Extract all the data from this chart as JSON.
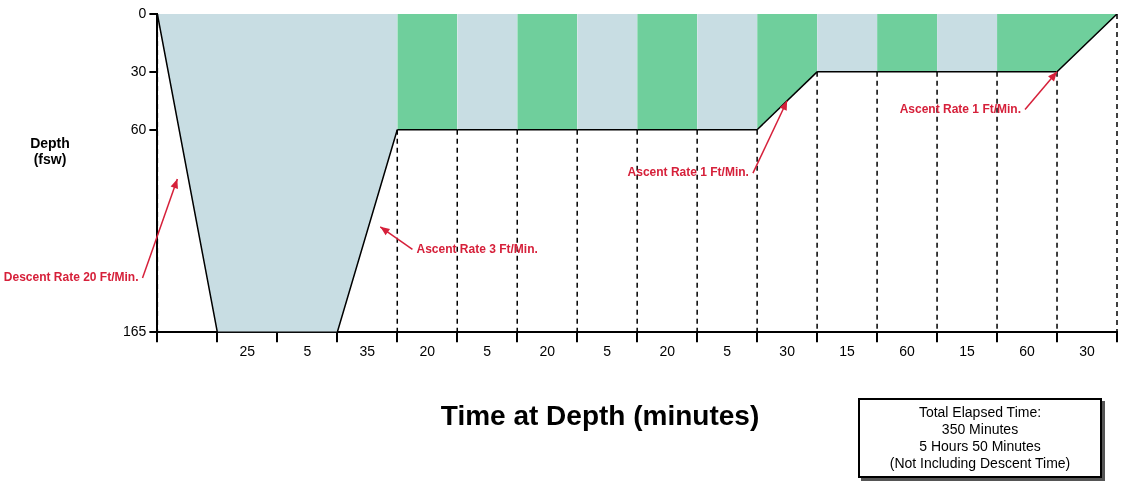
{
  "chart_data": {
    "type": "area",
    "xlabel": "Time at Depth (minutes)",
    "ylabel": "Depth (fsw)",
    "categories": [
      null,
      null,
      null,
      "25",
      null,
      "5",
      null,
      "35",
      null,
      "20",
      null,
      "5",
      null,
      "20",
      null,
      "5",
      null,
      "20",
      null,
      "5",
      null,
      "30",
      null,
      "15",
      null,
      "60",
      null,
      "15",
      null,
      "60",
      null,
      "30",
      null
    ],
    "ylim": [
      165,
      0
    ],
    "yticks": [
      0,
      30,
      60,
      165
    ],
    "series": [
      {
        "color": "#c8dde3",
        "values": [
          0,
          null,
          165,
          null,
          165,
          null,
          165,
          null,
          60,
          null,
          null,
          null,
          null,
          null,
          null,
          null,
          null,
          null,
          null,
          null,
          null,
          null,
          null,
          null,
          null,
          null,
          null,
          null,
          null,
          null,
          null,
          null,
          null
        ]
      },
      {
        "color": "#6fcf9c",
        "values": [
          null,
          null,
          null,
          null,
          null,
          null,
          null,
          null,
          60,
          null,
          60,
          null,
          null,
          null,
          null,
          null,
          null,
          null,
          null,
          null,
          null,
          null,
          null,
          null,
          null,
          null,
          null,
          null,
          null,
          null,
          null,
          null,
          null
        ]
      },
      {
        "color": "#c8dde3",
        "values": [
          null,
          null,
          null,
          null,
          null,
          null,
          null,
          null,
          null,
          null,
          60,
          null,
          60,
          null,
          null,
          null,
          null,
          null,
          null,
          null,
          null,
          null,
          null,
          null,
          null,
          null,
          null,
          null,
          null,
          null,
          null,
          null,
          null
        ]
      },
      {
        "color": "#6fcf9c",
        "values": [
          null,
          null,
          null,
          null,
          null,
          null,
          null,
          null,
          null,
          null,
          null,
          null,
          60,
          null,
          60,
          null,
          null,
          null,
          null,
          null,
          null,
          null,
          null,
          null,
          null,
          null,
          null,
          null,
          null,
          null,
          null,
          null,
          null
        ]
      },
      {
        "color": "#c8dde3",
        "values": [
          null,
          null,
          null,
          null,
          null,
          null,
          null,
          null,
          null,
          null,
          null,
          null,
          null,
          null,
          60,
          null,
          60,
          null,
          null,
          null,
          null,
          null,
          null,
          null,
          null,
          null,
          null,
          null,
          null,
          null,
          null,
          null,
          null
        ]
      },
      {
        "color": "#6fcf9c",
        "values": [
          null,
          null,
          null,
          null,
          null,
          null,
          null,
          null,
          null,
          null,
          null,
          null,
          null,
          null,
          null,
          null,
          60,
          null,
          60,
          null,
          null,
          null,
          null,
          null,
          null,
          null,
          null,
          null,
          null,
          null,
          null,
          null,
          null
        ]
      },
      {
        "color": "#c8dde3",
        "values": [
          null,
          null,
          null,
          null,
          null,
          null,
          null,
          null,
          null,
          null,
          null,
          null,
          null,
          null,
          null,
          null,
          null,
          null,
          60,
          null,
          60,
          null,
          null,
          null,
          null,
          null,
          null,
          null,
          null,
          null,
          null,
          null,
          null
        ]
      },
      {
        "color": "#6fcf9c",
        "values": [
          null,
          null,
          null,
          null,
          null,
          null,
          null,
          null,
          null,
          null,
          null,
          null,
          null,
          null,
          null,
          null,
          null,
          null,
          null,
          null,
          60,
          null,
          30,
          null,
          null,
          null,
          null,
          null,
          null,
          null,
          null,
          null,
          null
        ]
      },
      {
        "color": "#c8dde3",
        "values": [
          null,
          null,
          null,
          null,
          null,
          null,
          null,
          null,
          null,
          null,
          null,
          null,
          null,
          null,
          null,
          null,
          null,
          null,
          null,
          null,
          null,
          null,
          30,
          null,
          30,
          null,
          null,
          null,
          null,
          null,
          null,
          null,
          null
        ]
      },
      {
        "color": "#6fcf9c",
        "values": [
          null,
          null,
          null,
          null,
          null,
          null,
          null,
          null,
          null,
          null,
          null,
          null,
          null,
          null,
          null,
          null,
          null,
          null,
          null,
          null,
          null,
          null,
          null,
          null,
          30,
          null,
          30,
          null,
          null,
          null,
          null,
          null,
          null
        ]
      },
      {
        "color": "#c8dde3",
        "values": [
          null,
          null,
          null,
          null,
          null,
          null,
          null,
          null,
          null,
          null,
          null,
          null,
          null,
          null,
          null,
          null,
          null,
          null,
          null,
          null,
          null,
          null,
          null,
          null,
          null,
          null,
          30,
          null,
          30,
          null,
          null,
          null,
          null
        ]
      },
      {
        "color": "#6fcf9c",
        "values": [
          null,
          null,
          null,
          null,
          null,
          null,
          null,
          null,
          null,
          null,
          null,
          null,
          null,
          null,
          null,
          null,
          null,
          null,
          null,
          null,
          null,
          null,
          null,
          null,
          null,
          null,
          null,
          null,
          30,
          null,
          30,
          null,
          0
        ]
      }
    ],
    "marker": "none",
    "legend": false,
    "grid": "x",
    "annotations": [
      "Descent Rate 20 Ft/Min.",
      "Ascent Rate 3 Ft/Min.",
      {
        "text": "Ascent Rate 1 Ft/Min.",
        "x": "30",
        "y": 45
      },
      {
        "text": "Ascent Rate 1 Ft/Min.",
        "y": 30
      },
      "Total Elapsed Time:",
      "350 Minutes",
      "5 Hours 50 Minutes",
      "(Not Including Descent Time)"
    ]
  }
}
